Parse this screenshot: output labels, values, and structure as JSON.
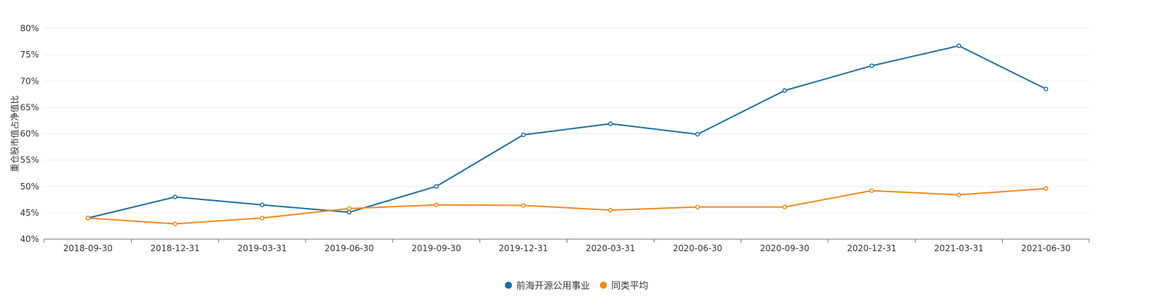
{
  "chart_data": {
    "type": "line",
    "ylabel": "重仓股市值占净值比",
    "ylim": [
      40,
      80
    ],
    "y_ticks": [
      "40%",
      "45%",
      "50%",
      "55%",
      "60%",
      "65%",
      "70%",
      "75%",
      "80%"
    ],
    "categories": [
      "2018-09-30",
      "2018-12-31",
      "2019-03-31",
      "2019-06-30",
      "2019-09-30",
      "2019-12-31",
      "2020-03-31",
      "2020-06-30",
      "2020-09-30",
      "2020-12-31",
      "2021-03-31",
      "2021-06-30"
    ],
    "grid": true,
    "legend_position": "bottom-center",
    "series": [
      {
        "name": "前海开源公用事业",
        "color": "#1f6f9f",
        "values": [
          44.0,
          48.0,
          46.5,
          45.1,
          50.0,
          59.8,
          61.9,
          59.9,
          68.2,
          72.9,
          76.7,
          68.5
        ]
      },
      {
        "name": "同类平均",
        "color": "#f28a1c",
        "values": [
          44.0,
          42.9,
          44.0,
          45.8,
          46.5,
          46.4,
          45.5,
          46.1,
          46.1,
          49.2,
          48.4,
          49.6
        ]
      }
    ]
  }
}
